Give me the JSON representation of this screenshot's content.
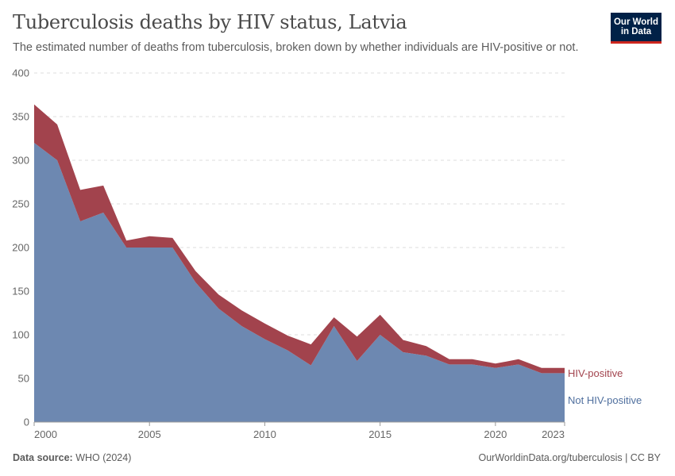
{
  "header": {
    "title": "Tuberculosis deaths by HIV status, Latvia",
    "subtitle": "The estimated number of deaths from tuberculosis, broken down by whether individuals are HIV-positive or not."
  },
  "logo": {
    "line1": "Our World",
    "line2": "in Data"
  },
  "footer": {
    "source_label": "Data source:",
    "source_value": "WHO (2024)",
    "right": "OurWorldinData.org/tuberculosis | CC BY"
  },
  "colors": {
    "hiv_positive": "#a2434d",
    "not_hiv_positive": "#6d88b1"
  },
  "chart_data": {
    "type": "area",
    "stacked": true,
    "x": [
      2000,
      2001,
      2002,
      2003,
      2004,
      2005,
      2006,
      2007,
      2008,
      2009,
      2010,
      2011,
      2012,
      2013,
      2014,
      2015,
      2016,
      2017,
      2018,
      2019,
      2020,
      2021,
      2022,
      2023
    ],
    "series": [
      {
        "name": "Not HIV-positive",
        "color": "#6d88b1",
        "values": [
          320,
          300,
          230,
          240,
          200,
          200,
          200,
          160,
          130,
          110,
          95,
          82,
          65,
          110,
          70,
          100,
          80,
          76,
          66,
          66,
          62,
          66,
          56,
          56
        ]
      },
      {
        "name": "HIV-positive",
        "color": "#a2434d",
        "values": [
          44,
          41,
          36,
          31,
          8,
          13,
          11,
          13,
          16,
          18,
          18,
          17,
          24,
          10,
          28,
          23,
          14,
          11,
          6,
          6,
          5,
          6,
          6,
          6
        ]
      }
    ],
    "ylim": [
      0,
      400
    ],
    "yticks": [
      0,
      50,
      100,
      150,
      200,
      250,
      300,
      350,
      400
    ],
    "xticks": [
      2000,
      2005,
      2010,
      2015,
      2020,
      2023
    ],
    "grid": "horizontal-dashed",
    "legend": "right-inline"
  }
}
